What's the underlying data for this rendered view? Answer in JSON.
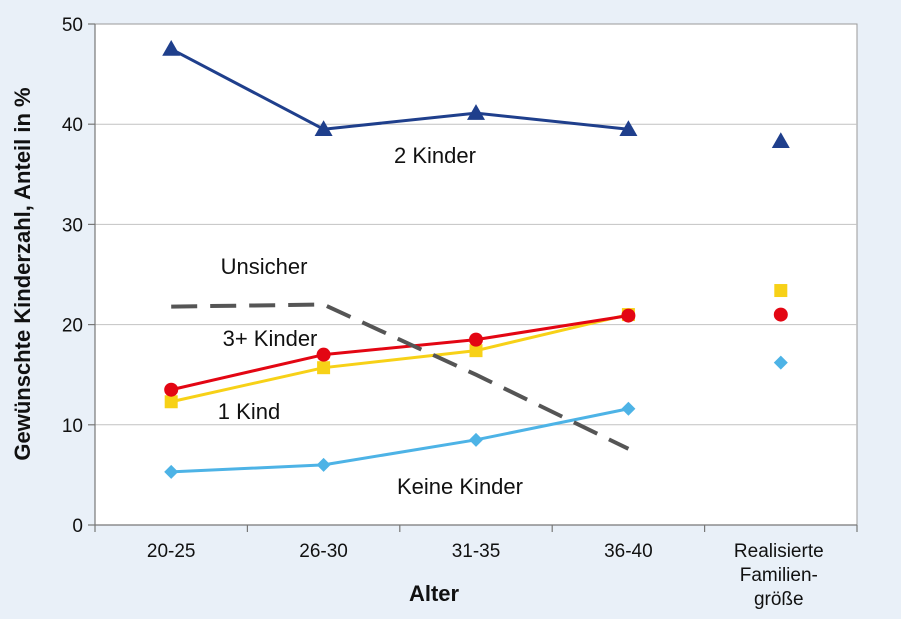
{
  "chart_data": {
    "type": "line",
    "xlabel": "Alter",
    "ylabel": "Gewünschte Kinderzahl, Anteil in %",
    "ylim": [
      0,
      50
    ],
    "yticks": [
      0,
      10,
      20,
      30,
      40,
      50
    ],
    "grid": true,
    "categories": [
      "20-25",
      "26-30",
      "31-35",
      "36-40"
    ],
    "extra_category": [
      "Realisierte",
      "Familien-",
      "größe"
    ],
    "series": [
      {
        "name": "2 Kinder",
        "color": "#1f3f8c",
        "marker": "triangle",
        "line": "solid",
        "values": [
          47.5,
          39.5,
          41.1,
          39.5
        ],
        "realized": 38.3
      },
      {
        "name": "Unsicher",
        "color": "#555555",
        "marker": "none",
        "line": "dashed",
        "values": [
          21.8,
          22.0,
          15.0,
          7.6
        ],
        "realized": null
      },
      {
        "name": "3+ Kinder",
        "color": "#e30613",
        "marker": "circle",
        "line": "solid",
        "values": [
          13.5,
          17.0,
          18.5,
          20.9
        ],
        "realized": 21.0
      },
      {
        "name": "1 Kind",
        "color": "#f7d117",
        "marker": "square",
        "line": "solid",
        "values": [
          12.3,
          15.7,
          17.4,
          21.0
        ],
        "realized": 23.4
      },
      {
        "name": "Keine Kinder",
        "color": "#4db3e6",
        "marker": "diamond",
        "line": "solid",
        "values": [
          5.3,
          6.0,
          8.5,
          11.6
        ],
        "realized": 16.2
      }
    ]
  }
}
